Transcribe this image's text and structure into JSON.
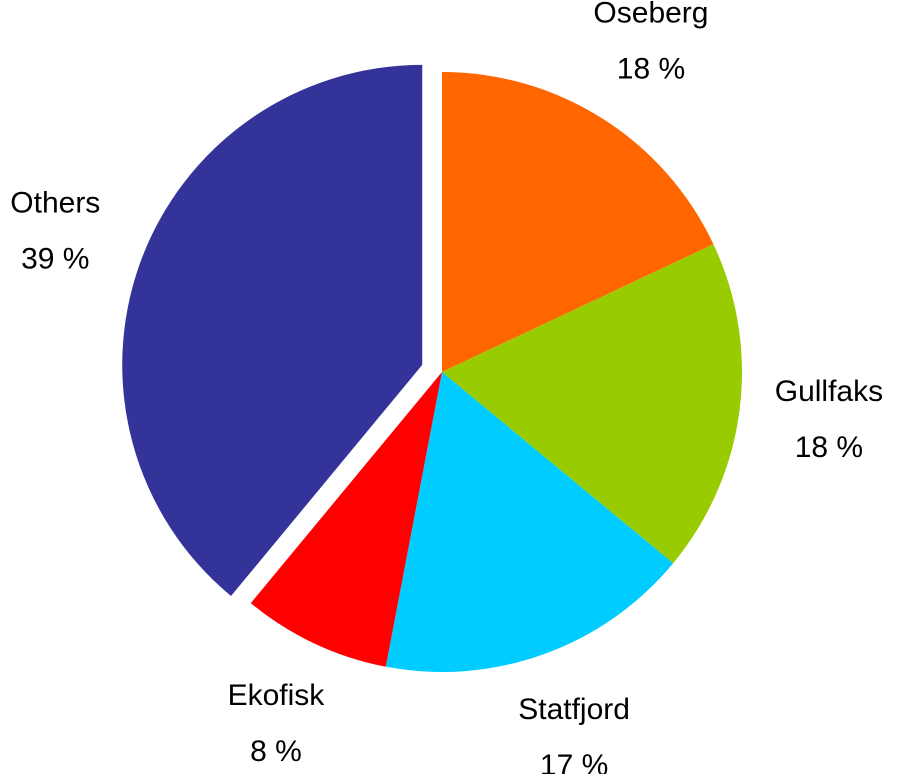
{
  "chart_data": {
    "type": "pie",
    "categories": [
      "Oseberg",
      "Gullfaks",
      "Statfjord",
      "Ekofisk",
      "Others"
    ],
    "values": [
      18,
      18,
      17,
      8,
      39
    ],
    "value_labels": [
      "18 %",
      "18 %",
      "17 %",
      "8 %",
      "39 %"
    ],
    "colors": [
      "#ff6600",
      "#99cc00",
      "#00ccff",
      "#ff0000",
      "#333399"
    ],
    "exploded": [
      false,
      false,
      false,
      false,
      true
    ]
  }
}
